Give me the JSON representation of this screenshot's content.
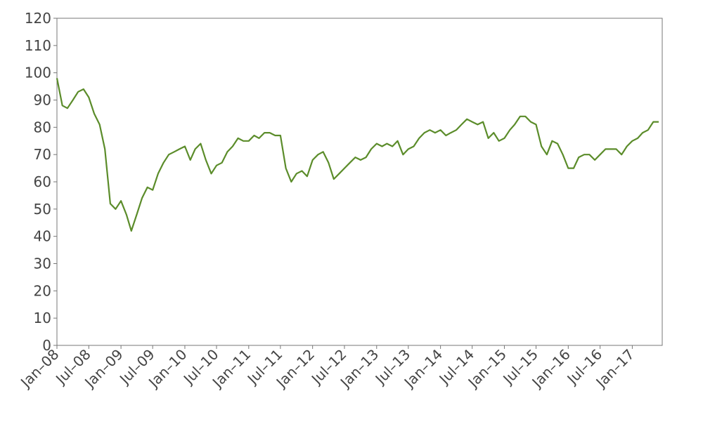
{
  "chart_data": {
    "type": "line",
    "x": [
      "2008-01",
      "2008-02",
      "2008-03",
      "2008-04",
      "2008-05",
      "2008-06",
      "2008-07",
      "2008-08",
      "2008-09",
      "2008-10",
      "2008-11",
      "2008-12",
      "2009-01",
      "2009-02",
      "2009-03",
      "2009-04",
      "2009-05",
      "2009-06",
      "2009-07",
      "2009-08",
      "2009-09",
      "2009-10",
      "2009-11",
      "2009-12",
      "2010-01",
      "2010-02",
      "2010-03",
      "2010-04",
      "2010-05",
      "2010-06",
      "2010-07",
      "2010-08",
      "2010-09",
      "2010-10",
      "2010-11",
      "2010-12",
      "2011-01",
      "2011-02",
      "2011-03",
      "2011-04",
      "2011-05",
      "2011-06",
      "2011-07",
      "2011-08",
      "2011-09",
      "2011-10",
      "2011-11",
      "2011-12",
      "2012-01",
      "2012-02",
      "2012-03",
      "2012-04",
      "2012-05",
      "2012-06",
      "2012-07",
      "2012-08",
      "2012-09",
      "2012-10",
      "2012-11",
      "2012-12",
      "2013-01",
      "2013-02",
      "2013-03",
      "2013-04",
      "2013-05",
      "2013-06",
      "2013-07",
      "2013-08",
      "2013-09",
      "2013-10",
      "2013-11",
      "2013-12",
      "2014-01",
      "2014-02",
      "2014-03",
      "2014-04",
      "2014-05",
      "2014-06",
      "2014-07",
      "2014-08",
      "2014-09",
      "2014-10",
      "2014-11",
      "2014-12",
      "2015-01",
      "2015-02",
      "2015-03",
      "2015-04",
      "2015-05",
      "2015-06",
      "2015-07",
      "2015-08",
      "2015-09",
      "2015-10",
      "2015-11",
      "2015-12",
      "2016-01",
      "2016-02",
      "2016-03",
      "2016-04",
      "2016-05",
      "2016-06",
      "2016-07",
      "2016-08",
      "2016-09",
      "2016-10",
      "2016-11",
      "2016-12",
      "2017-01",
      "2017-02",
      "2017-03",
      "2017-04",
      "2017-05",
      "2017-06"
    ],
    "series": [
      {
        "color": "#5b8c2a",
        "values": [
          98,
          88,
          87,
          90,
          93,
          94,
          91,
          85,
          81,
          72,
          52,
          50,
          53,
          48,
          42,
          48,
          54,
          58,
          57,
          63,
          67,
          70,
          71,
          72,
          73,
          68,
          72,
          74,
          68,
          63,
          66,
          67,
          71,
          73,
          76,
          75,
          75,
          77,
          76,
          78,
          78,
          77,
          77,
          65,
          60,
          63,
          64,
          62,
          68,
          70,
          71,
          67,
          61,
          63,
          65,
          67,
          69,
          68,
          69,
          72,
          74,
          73,
          74,
          73,
          75,
          70,
          72,
          73,
          76,
          78,
          79,
          78,
          79,
          77,
          78,
          79,
          81,
          83,
          82,
          81,
          82,
          76,
          78,
          75,
          76,
          79,
          81,
          84,
          84,
          82,
          81,
          73,
          70,
          75,
          74,
          70,
          65,
          65,
          69,
          70,
          70,
          68,
          70,
          72,
          72,
          72,
          70,
          73,
          75,
          76,
          78,
          79,
          82,
          82
        ]
      }
    ],
    "xlim": [
      "2008-01",
      "2017-06"
    ],
    "xticks": [
      {
        "value": "2008-01",
        "label": "Jan–08"
      },
      {
        "value": "2008-07",
        "label": "Jul–08"
      },
      {
        "value": "2009-01",
        "label": "Jan–09"
      },
      {
        "value": "2009-07",
        "label": "Jul–09"
      },
      {
        "value": "2010-01",
        "label": "Jan–10"
      },
      {
        "value": "2010-07",
        "label": "Jul–10"
      },
      {
        "value": "2011-01",
        "label": "Jan–11"
      },
      {
        "value": "2011-07",
        "label": "Jul–11"
      },
      {
        "value": "2012-01",
        "label": "Jan–12"
      },
      {
        "value": "2012-07",
        "label": "Jul–12"
      },
      {
        "value": "2013-01",
        "label": "Jan–13"
      },
      {
        "value": "2013-07",
        "label": "Jul–13"
      },
      {
        "value": "2014-01",
        "label": "Jan–14"
      },
      {
        "value": "2014-07",
        "label": "Jul–14"
      },
      {
        "value": "2015-01",
        "label": "Jan–15"
      },
      {
        "value": "2015-07",
        "label": "Jul–15"
      },
      {
        "value": "2016-01",
        "label": "Jan–16"
      },
      {
        "value": "2016-07",
        "label": "Jul–16"
      },
      {
        "value": "2017-01",
        "label": "Jan–17"
      }
    ],
    "ylim": [
      0,
      120
    ],
    "yticks": [
      0,
      10,
      20,
      30,
      40,
      50,
      60,
      70,
      80,
      90,
      100,
      110,
      120
    ],
    "grid": false
  }
}
